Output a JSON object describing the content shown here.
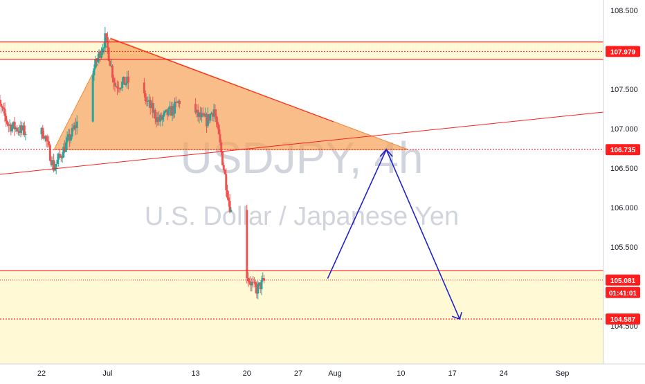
{
  "chart_data": {
    "type": "candlestick",
    "symbol": "USDJPY",
    "interval_label": "4h",
    "watermark_main": "USDJPY, 4h",
    "watermark_sub": "U.S. Dollar / Japanese Yen",
    "y_ticks": [
      "108.500",
      "108.000",
      "107.500",
      "107.000",
      "106.500",
      "106.000",
      "105.500",
      "104.500"
    ],
    "x_ticks": [
      "22",
      "Jul",
      "13",
      "20",
      "27",
      "Aug",
      "10",
      "17",
      "24",
      "Sep"
    ],
    "ylim": [
      104.35,
      108.65
    ],
    "price_tags": [
      {
        "label": "107.979",
        "price": 107.979
      },
      {
        "label": "106.735",
        "price": 106.735
      },
      {
        "label": "105.081",
        "price": 105.081
      },
      {
        "label": "104.587",
        "price": 104.587
      }
    ],
    "countdown": "01:41:01",
    "resistance_zone": [
      107.88,
      108.1
    ],
    "support_zone": [
      105.2,
      104.4
    ],
    "projection_path": [
      {
        "date": "2020-07-31",
        "price": 105.1
      },
      {
        "date": "2020-08-08",
        "price": 106.735
      },
      {
        "date": "2020-08-18",
        "price": 104.587
      }
    ],
    "colors": {
      "up": "#26a69a",
      "down": "#ef5350",
      "triangle_fill": "#f5a45c",
      "level": "#ff1e1e",
      "zone": "#fff9d6",
      "projection": "#1e22c8",
      "tag": "#ff1e1e"
    }
  }
}
